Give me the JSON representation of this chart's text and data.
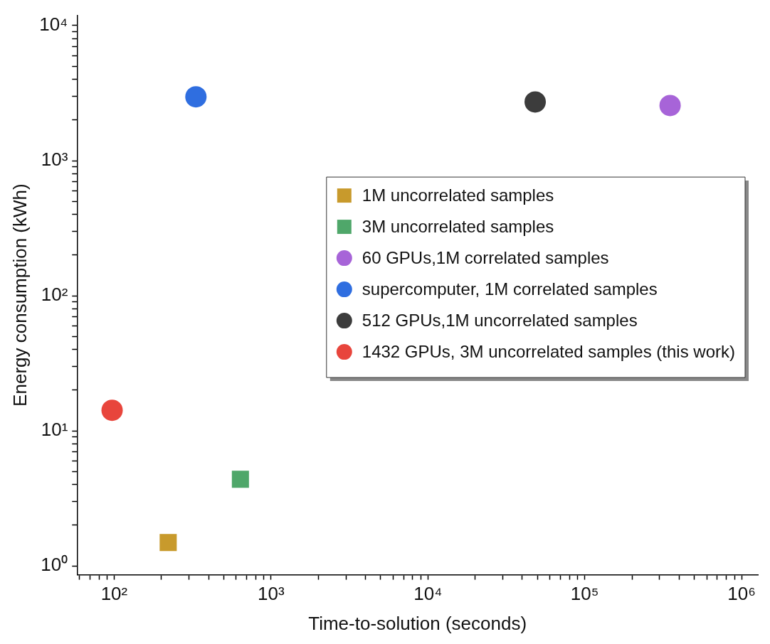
{
  "chart_data": {
    "type": "scatter",
    "xlabel": "Time-to-solution (seconds)",
    "ylabel": "Energy consumption (kWh)",
    "log": "xy",
    "grid": false,
    "legend": "right",
    "xlim": [
      58,
      1270000
    ],
    "ylim": [
      0.86,
      11900
    ],
    "xticks": [
      {
        "value": 60,
        "label": null
      },
      {
        "value": 70,
        "label": null
      },
      {
        "value": 80,
        "label": null
      },
      {
        "value": 90,
        "label": null
      },
      {
        "value": 100,
        "label": "10²"
      },
      {
        "value": 200,
        "label": null
      },
      {
        "value": 300,
        "label": null
      },
      {
        "value": 400,
        "label": null
      },
      {
        "value": 500,
        "label": null
      },
      {
        "value": 600,
        "label": null
      },
      {
        "value": 700,
        "label": null
      },
      {
        "value": 800,
        "label": null
      },
      {
        "value": 900,
        "label": null
      },
      {
        "value": 1000,
        "label": "10³"
      },
      {
        "value": 2000,
        "label": null
      },
      {
        "value": 3000,
        "label": null
      },
      {
        "value": 4000,
        "label": null
      },
      {
        "value": 5000,
        "label": null
      },
      {
        "value": 6000,
        "label": null
      },
      {
        "value": 7000,
        "label": null
      },
      {
        "value": 8000,
        "label": null
      },
      {
        "value": 9000,
        "label": null
      },
      {
        "value": 10000,
        "label": "10⁴"
      },
      {
        "value": 20000,
        "label": null
      },
      {
        "value": 30000,
        "label": null
      },
      {
        "value": 40000,
        "label": null
      },
      {
        "value": 50000,
        "label": null
      },
      {
        "value": 60000,
        "label": null
      },
      {
        "value": 70000,
        "label": null
      },
      {
        "value": 80000,
        "label": null
      },
      {
        "value": 90000,
        "label": null
      },
      {
        "value": 100000,
        "label": "10⁵"
      },
      {
        "value": 200000,
        "label": null
      },
      {
        "value": 300000,
        "label": null
      },
      {
        "value": 400000,
        "label": null
      },
      {
        "value": 500000,
        "label": null
      },
      {
        "value": 600000,
        "label": null
      },
      {
        "value": 700000,
        "label": null
      },
      {
        "value": 800000,
        "label": null
      },
      {
        "value": 900000,
        "label": null
      },
      {
        "value": 1000000,
        "label": "10⁶"
      }
    ],
    "yticks": [
      {
        "value": 1,
        "label": "10⁰"
      },
      {
        "value": 2,
        "label": null
      },
      {
        "value": 3,
        "label": null
      },
      {
        "value": 4,
        "label": null
      },
      {
        "value": 5,
        "label": null
      },
      {
        "value": 6,
        "label": null
      },
      {
        "value": 7,
        "label": null
      },
      {
        "value": 8,
        "label": null
      },
      {
        "value": 9,
        "label": null
      },
      {
        "value": 10,
        "label": "10¹"
      },
      {
        "value": 20,
        "label": null
      },
      {
        "value": 30,
        "label": null
      },
      {
        "value": 40,
        "label": null
      },
      {
        "value": 50,
        "label": null
      },
      {
        "value": 60,
        "label": null
      },
      {
        "value": 70,
        "label": null
      },
      {
        "value": 80,
        "label": null
      },
      {
        "value": 90,
        "label": null
      },
      {
        "value": 100,
        "label": "10²"
      },
      {
        "value": 200,
        "label": null
      },
      {
        "value": 300,
        "label": null
      },
      {
        "value": 400,
        "label": null
      },
      {
        "value": 500,
        "label": null
      },
      {
        "value": 600,
        "label": null
      },
      {
        "value": 700,
        "label": null
      },
      {
        "value": 800,
        "label": null
      },
      {
        "value": 900,
        "label": null
      },
      {
        "value": 1000,
        "label": "10³"
      },
      {
        "value": 2000,
        "label": null
      },
      {
        "value": 3000,
        "label": null
      },
      {
        "value": 4000,
        "label": null
      },
      {
        "value": 5000,
        "label": null
      },
      {
        "value": 6000,
        "label": null
      },
      {
        "value": 7000,
        "label": null
      },
      {
        "value": 8000,
        "label": null
      },
      {
        "value": 9000,
        "label": null
      },
      {
        "value": 10000,
        "label": "10⁴"
      }
    ],
    "series": [
      {
        "name": "1M uncorrelated samples",
        "color": "#c89a2c",
        "marker": "square",
        "x": [
          221
        ],
        "values": [
          1.49
        ]
      },
      {
        "name": "3M uncorrelated samples",
        "color": "#4fa76a",
        "marker": "square",
        "x": [
          638
        ],
        "values": [
          4.38
        ]
      },
      {
        "name": "60 GPUs,1M correlated samples",
        "color": "#a764d8",
        "marker": "circle",
        "x": [
          350000
        ],
        "values": [
          2560
        ]
      },
      {
        "name": "supercomputer, 1M correlated samples",
        "color": "#2f6ee0",
        "marker": "circle",
        "x": [
          332
        ],
        "values": [
          2970
        ]
      },
      {
        "name": "512 GPUs,1M uncorrelated samples",
        "color": "#3c3c3c",
        "marker": "circle",
        "x": [
          48300
        ],
        "values": [
          2720
        ]
      },
      {
        "name": "1432 GPUs, 3M uncorrelated samples (this work)",
        "color": "#e8453c",
        "marker": "circle",
        "x": [
          97
        ],
        "values": [
          14.2
        ]
      }
    ]
  }
}
